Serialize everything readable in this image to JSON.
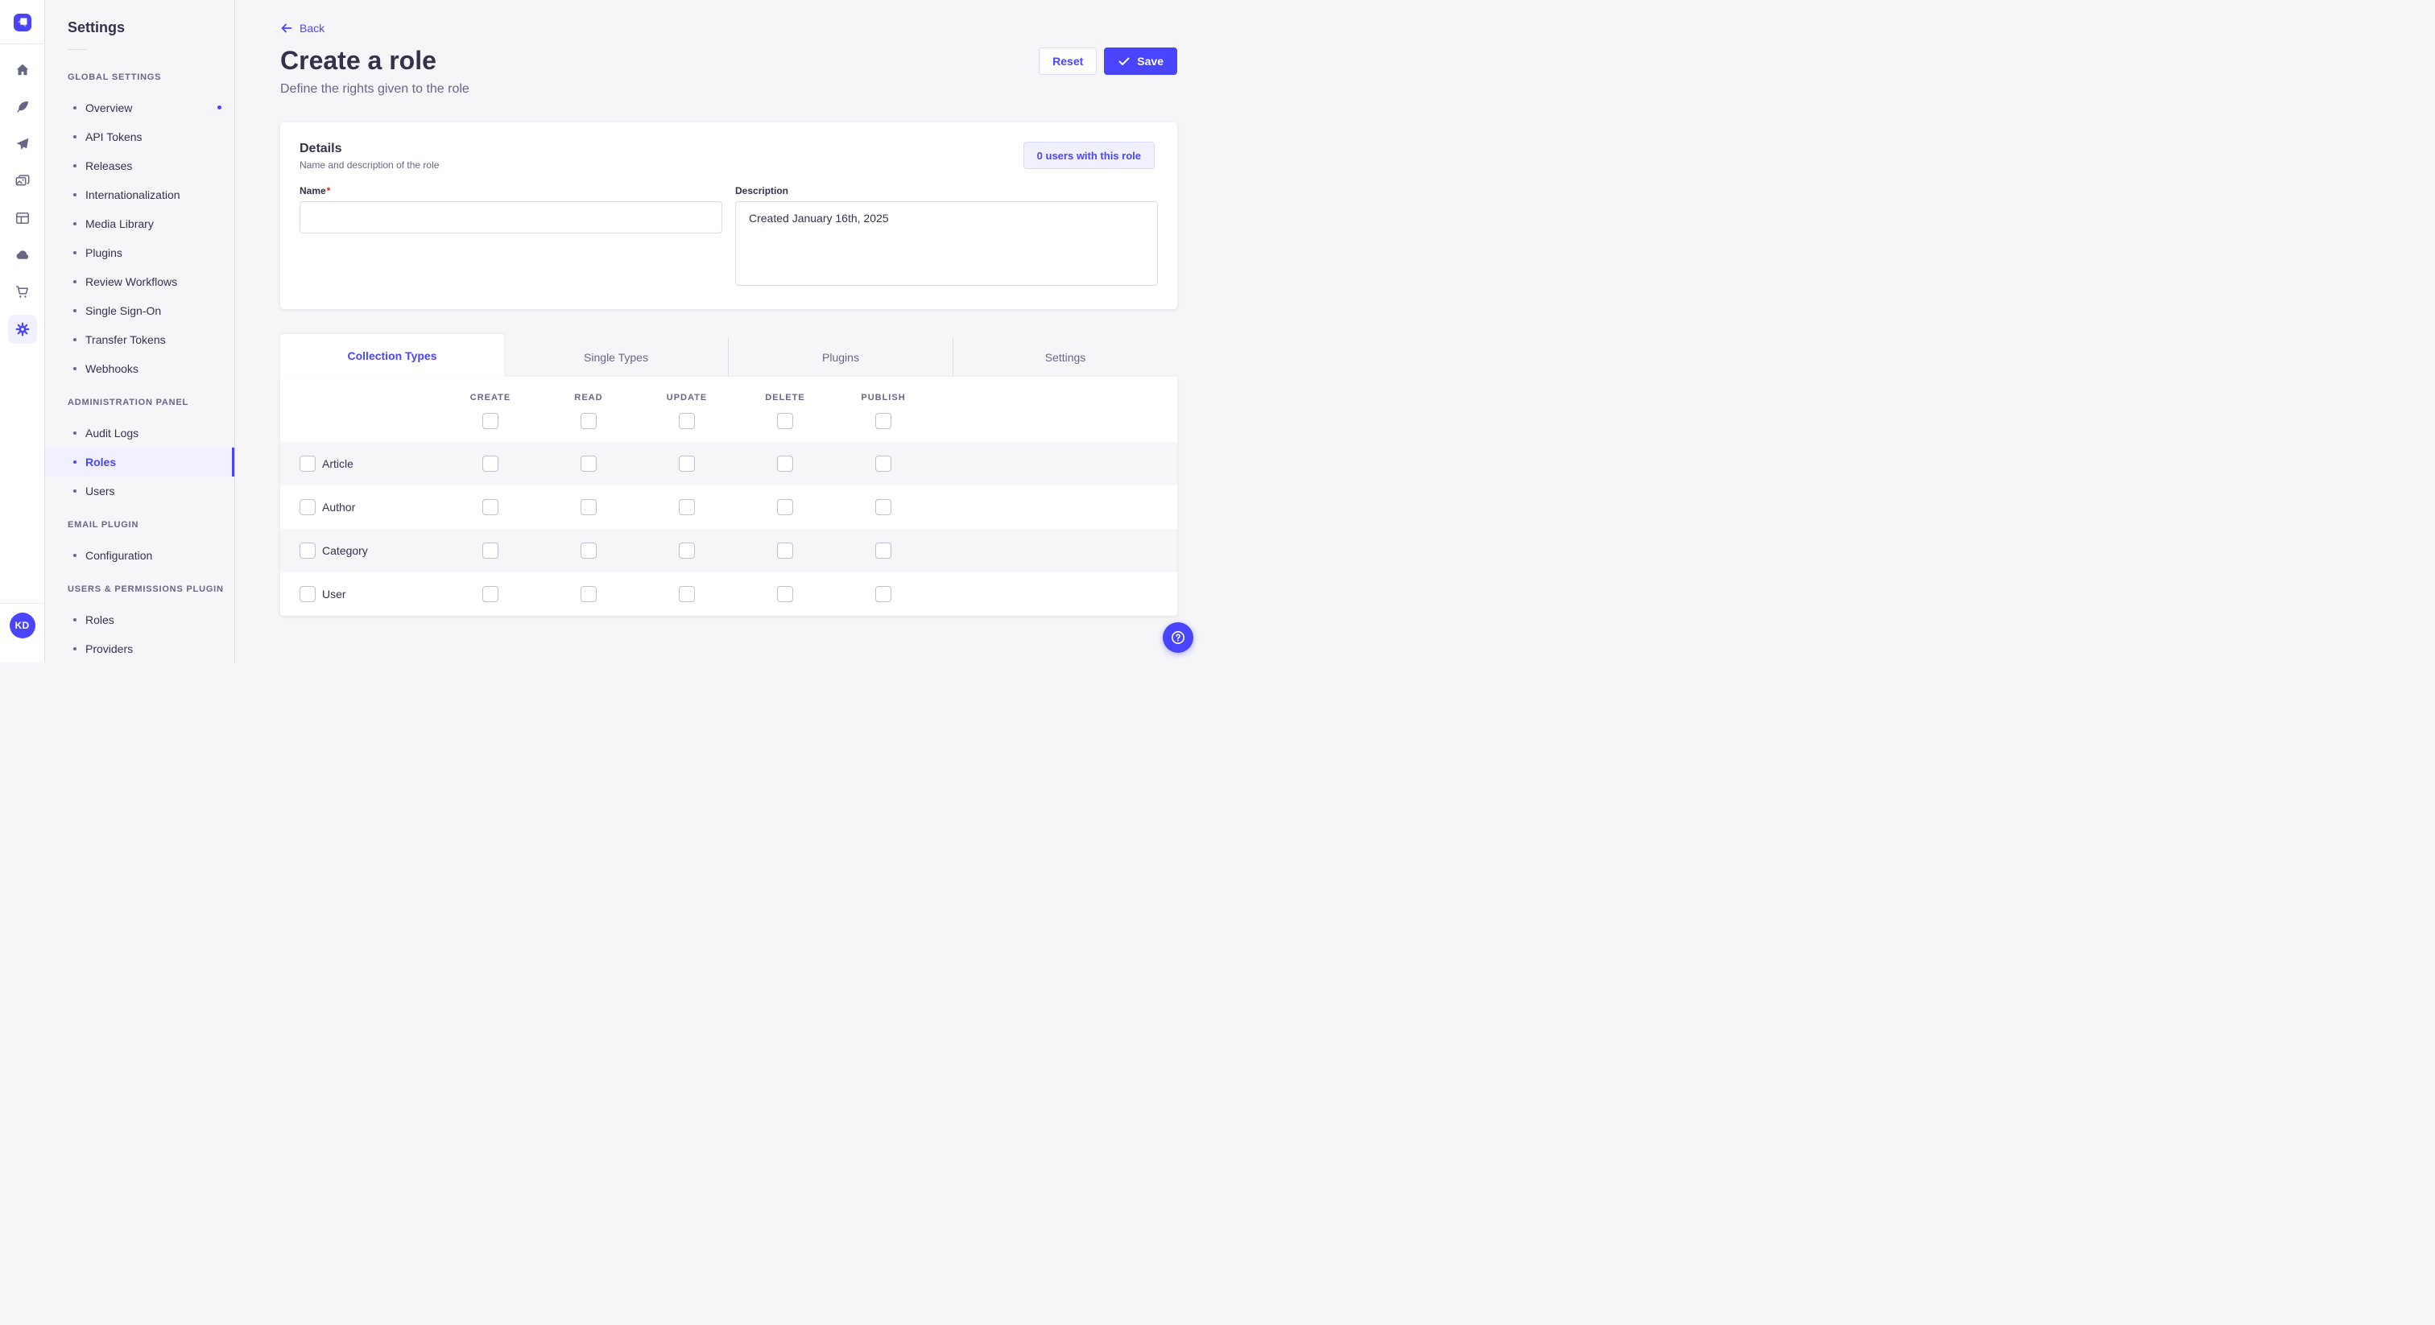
{
  "colors": {
    "accent": "#4945FF",
    "accent_light_bg": "#F0F0FF",
    "accent_border": "#D9D8FF",
    "text_dark": "#32324D",
    "text_muted": "#666687",
    "neutral_border": "#DCDCE4",
    "page_bg": "#F6F6F9",
    "required_mark_red": "#D02B20"
  },
  "rail": {
    "logo_icon": "strapi-logo",
    "items": [
      {
        "icon": "home-icon",
        "active": false
      },
      {
        "icon": "feather-icon",
        "active": false
      },
      {
        "icon": "paper-plane-icon",
        "active": false
      },
      {
        "icon": "media-images-icon",
        "active": false
      },
      {
        "icon": "layout-icon",
        "active": false
      },
      {
        "icon": "cloud-icon",
        "active": false
      },
      {
        "icon": "cart-icon",
        "active": false
      },
      {
        "icon": "gear-icon",
        "active": true
      }
    ],
    "avatar_initials": "KD"
  },
  "sidebar": {
    "title": "Settings",
    "sections": [
      {
        "label": "GLOBAL SETTINGS",
        "items": [
          {
            "label": "Overview",
            "active": false,
            "notification": true
          },
          {
            "label": "API Tokens",
            "active": false
          },
          {
            "label": "Releases",
            "active": false
          },
          {
            "label": "Internationalization",
            "active": false
          },
          {
            "label": "Media Library",
            "active": false
          },
          {
            "label": "Plugins",
            "active": false
          },
          {
            "label": "Review Workflows",
            "active": false
          },
          {
            "label": "Single Sign-On",
            "active": false
          },
          {
            "label": "Transfer Tokens",
            "active": false
          },
          {
            "label": "Webhooks",
            "active": false
          }
        ]
      },
      {
        "label": "ADMINISTRATION PANEL",
        "items": [
          {
            "label": "Audit Logs",
            "active": false
          },
          {
            "label": "Roles",
            "active": true
          },
          {
            "label": "Users",
            "active": false
          }
        ]
      },
      {
        "label": "EMAIL PLUGIN",
        "items": [
          {
            "label": "Configuration",
            "active": false
          }
        ]
      },
      {
        "label": "USERS & PERMISSIONS PLUGIN",
        "items": [
          {
            "label": "Roles",
            "active": false
          },
          {
            "label": "Providers",
            "active": false
          }
        ]
      }
    ]
  },
  "header": {
    "back_label": "Back",
    "title": "Create a role",
    "subtitle": "Define the rights given to the role",
    "reset_label": "Reset",
    "save_label": "Save",
    "save_icon": "check-icon",
    "back_icon": "arrow-left-icon"
  },
  "details_card": {
    "title": "Details",
    "subtitle": "Name and description of the role",
    "users_badge": "0 users with this role",
    "name_label": "Name",
    "name_required_mark": "*",
    "name_value": "",
    "description_label": "Description",
    "description_value": "Created January 16th, 2025"
  },
  "permissions": {
    "tabs": [
      {
        "label": "Collection Types",
        "active": true
      },
      {
        "label": "Single Types",
        "active": false
      },
      {
        "label": "Plugins",
        "active": false
      },
      {
        "label": "Settings",
        "active": false
      }
    ],
    "columns": [
      "CREATE",
      "READ",
      "UPDATE",
      "DELETE",
      "PUBLISH"
    ],
    "select_all": [
      false,
      false,
      false,
      false,
      false
    ],
    "rows": [
      {
        "label": "Article",
        "row_checked": false,
        "permissions": [
          false,
          false,
          false,
          false,
          false
        ]
      },
      {
        "label": "Author",
        "row_checked": false,
        "permissions": [
          false,
          false,
          false,
          false,
          false
        ]
      },
      {
        "label": "Category",
        "row_checked": false,
        "permissions": [
          false,
          false,
          false,
          false,
          false
        ]
      },
      {
        "label": "User",
        "row_checked": false,
        "permissions": [
          false,
          false,
          false,
          false,
          false
        ]
      }
    ]
  },
  "help_button": {
    "icon": "question-circle-icon"
  }
}
